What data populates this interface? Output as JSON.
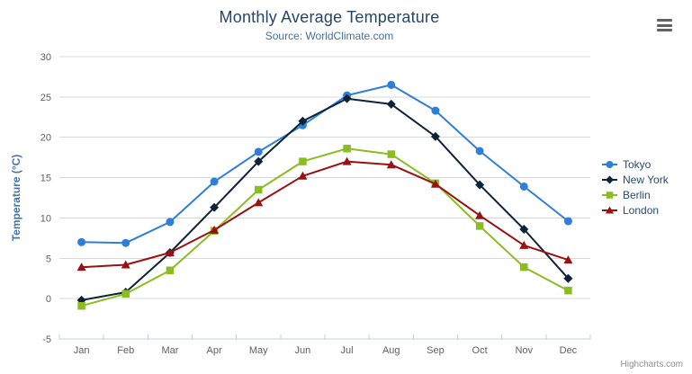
{
  "chart": {
    "credits_label": "Highcharts.com",
    "context_menu_icon": "hamburger-icon"
  },
  "chart_data": {
    "type": "line",
    "title": "Monthly Average Temperature",
    "subtitle": "Source: WorldClimate.com",
    "xlabel": "",
    "ylabel": "Temperature (°C)",
    "categories": [
      "Jan",
      "Feb",
      "Mar",
      "Apr",
      "May",
      "Jun",
      "Jul",
      "Aug",
      "Sep",
      "Oct",
      "Nov",
      "Dec"
    ],
    "ylim": [
      -5,
      30
    ],
    "yticks": [
      -5,
      0,
      5,
      10,
      15,
      20,
      25,
      30
    ],
    "grid": true,
    "legend_position": "right",
    "series": [
      {
        "name": "Tokyo",
        "color": "#2f7ed8",
        "marker": "circle",
        "values": [
          7.0,
          6.9,
          9.5,
          14.5,
          18.2,
          21.5,
          25.2,
          26.5,
          23.3,
          18.3,
          13.9,
          9.6
        ]
      },
      {
        "name": "New York",
        "color": "#0d233a",
        "marker": "diamond",
        "values": [
          -0.2,
          0.8,
          5.7,
          11.3,
          17.0,
          22.0,
          24.8,
          24.1,
          20.1,
          14.1,
          8.6,
          2.5
        ]
      },
      {
        "name": "Berlin",
        "color": "#8bbc21",
        "marker": "square",
        "values": [
          -0.9,
          0.6,
          3.5,
          8.4,
          13.5,
          17.0,
          18.6,
          17.9,
          14.3,
          9.0,
          3.9,
          1.0
        ]
      },
      {
        "name": "London",
        "color": "#9a1013",
        "marker": "triangle",
        "values": [
          3.9,
          4.2,
          5.7,
          8.5,
          11.9,
          15.2,
          17.0,
          16.6,
          14.2,
          10.3,
          6.6,
          4.8
        ]
      }
    ],
    "axis_colors": {
      "axis_line": "#c0d0e0",
      "gridline": "#d8d8d8"
    }
  }
}
